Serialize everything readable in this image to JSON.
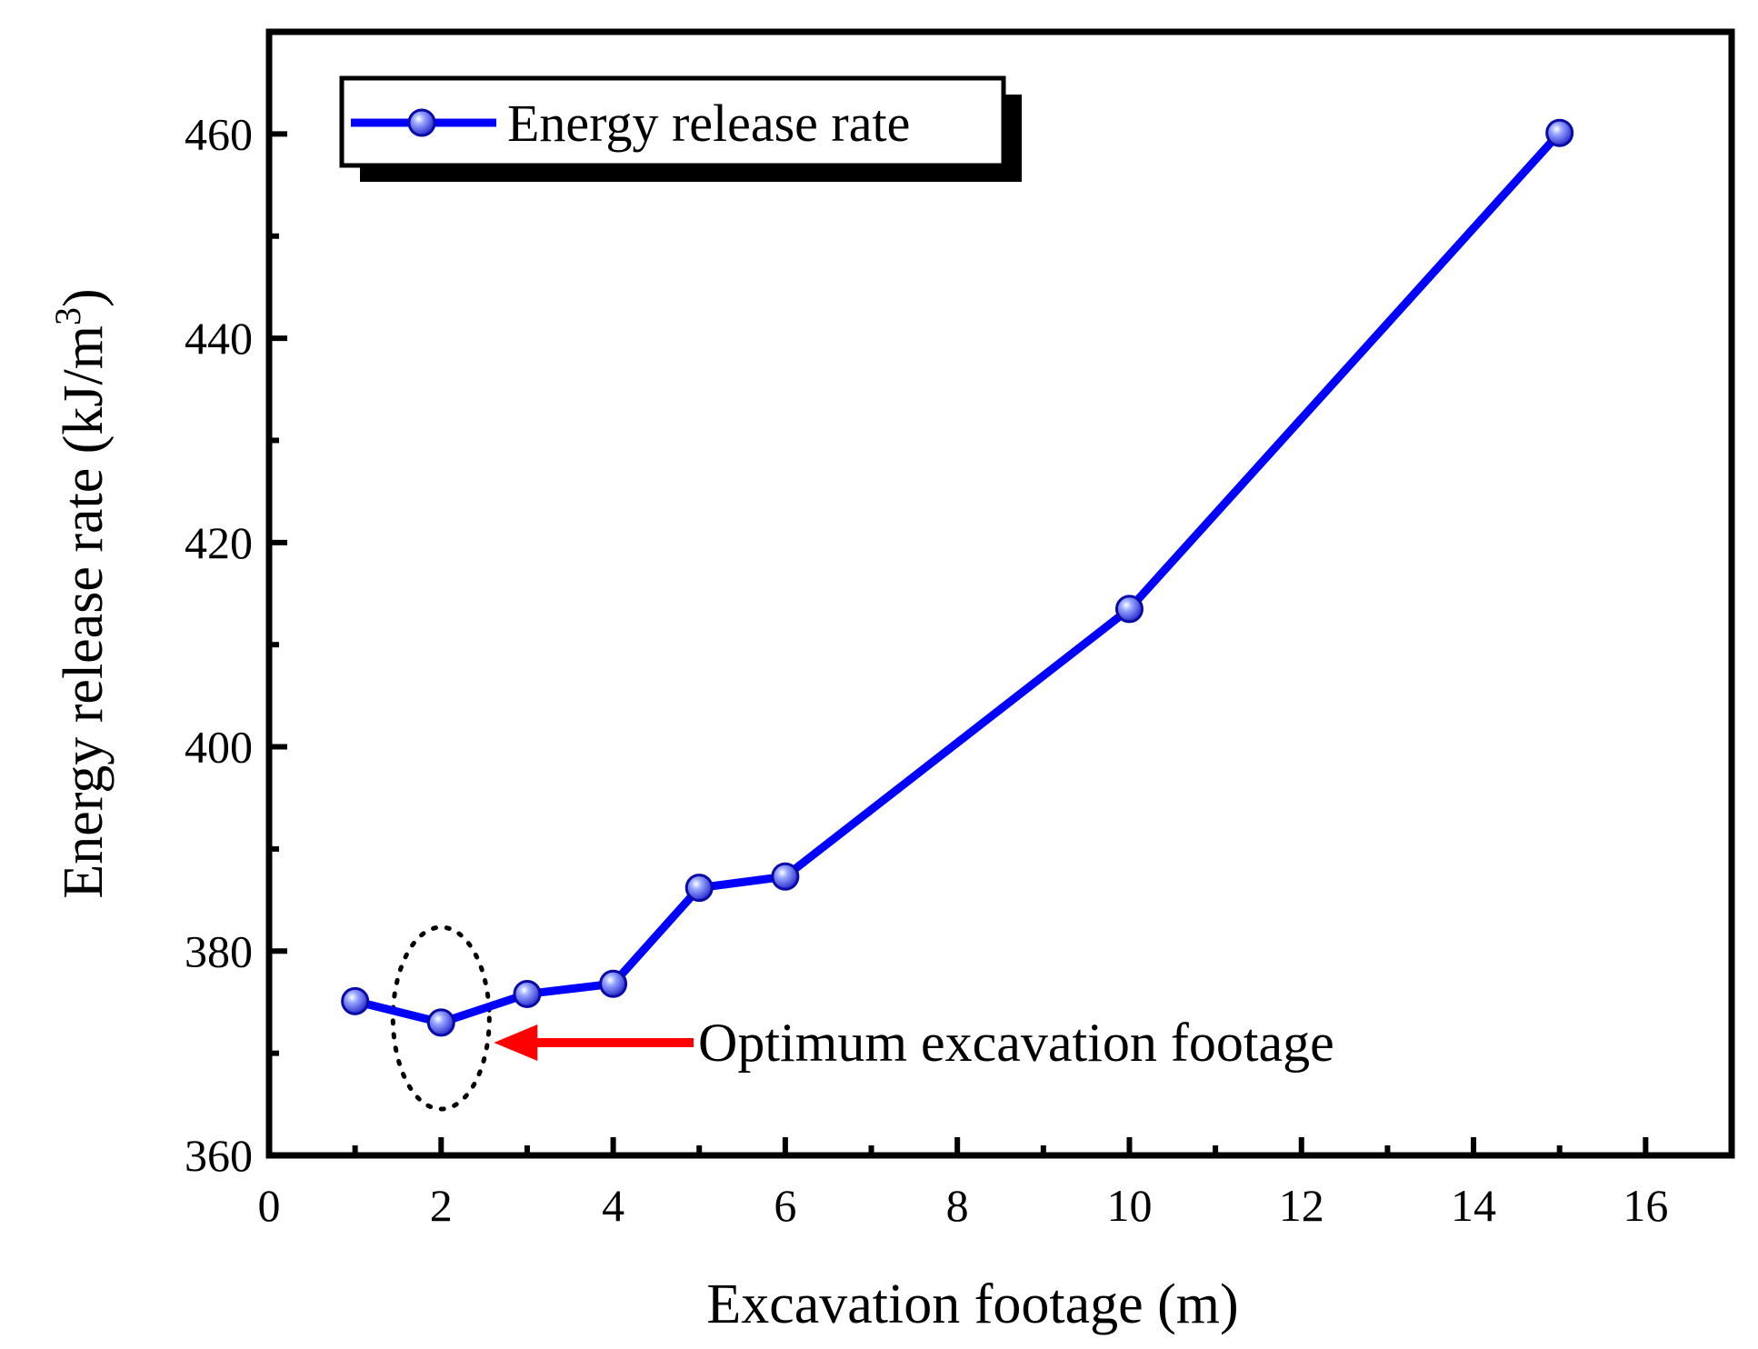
{
  "chart_data": {
    "type": "line",
    "title": "",
    "xlabel": "Excavation footage (m)",
    "ylabel_main": "Energy release rate (kJ/m",
    "ylabel_sup": "3",
    "ylabel_close": ")",
    "xlim": [
      0,
      17
    ],
    "ylim": [
      360,
      470
    ],
    "xticks": [
      0,
      2,
      4,
      6,
      8,
      10,
      12,
      14,
      16
    ],
    "xtick_labels": [
      "0",
      "2",
      "4",
      "6",
      "8",
      "10",
      "12",
      "14",
      "16"
    ],
    "xminor": [
      1,
      3,
      5,
      7,
      9,
      11,
      13,
      15
    ],
    "yticks": [
      360,
      380,
      400,
      420,
      440,
      460
    ],
    "ytick_labels": [
      "360",
      "380",
      "400",
      "420",
      "440",
      "460"
    ],
    "yminor": [
      370,
      390,
      410,
      430,
      450
    ],
    "grid": false,
    "legend_position": "top-left",
    "series": [
      {
        "name": "Energy release rate",
        "color": "#0000ff",
        "x": [
          1,
          2,
          3,
          4,
          5,
          6,
          10,
          15
        ],
        "y": [
          375.1,
          373.0,
          375.8,
          376.8,
          386.2,
          387.3,
          413.5,
          460.1
        ]
      }
    ],
    "annotation": {
      "text": "Optimum excavation footage",
      "arrow_color": "#ff0000",
      "target_x": 2
    }
  }
}
